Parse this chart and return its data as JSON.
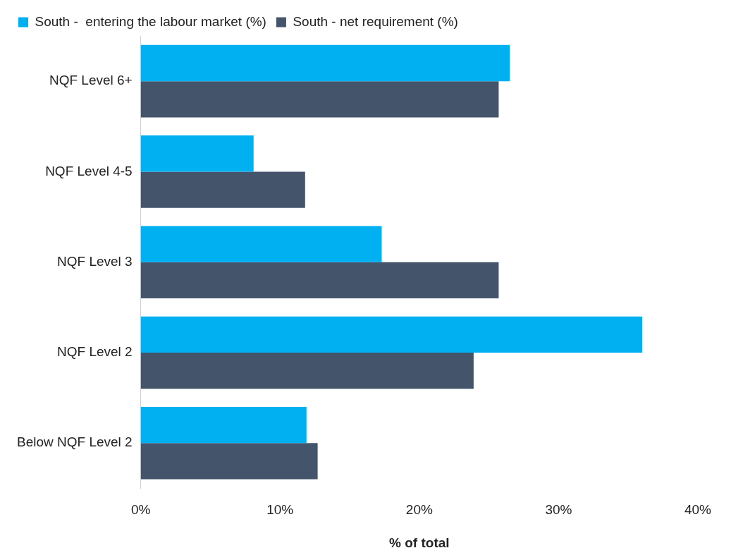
{
  "chart_data": {
    "type": "bar",
    "orientation": "horizontal",
    "categories": [
      "NQF Level 6+",
      "NQF Level 4-5",
      "NQF Level 3",
      "NQF Level 2",
      "Below NQF Level 2"
    ],
    "series": [
      {
        "name": "South -  entering the labour market (%)",
        "color": "#00b0f0",
        "values": [
          26.5,
          8.1,
          17.3,
          36.0,
          11.9
        ]
      },
      {
        "name": "South - net requirement (%)",
        "color": "#44546a",
        "values": [
          25.7,
          11.8,
          25.7,
          23.9,
          12.7
        ]
      }
    ],
    "xlim": [
      0,
      40
    ],
    "xticks": [
      {
        "value": 0,
        "label": "0%"
      },
      {
        "value": 10,
        "label": "10%"
      },
      {
        "value": 20,
        "label": "20%"
      },
      {
        "value": 30,
        "label": "30%"
      },
      {
        "value": 40,
        "label": "40%"
      }
    ],
    "xlabel": "% of total",
    "grid": false,
    "legend": "top left"
  }
}
